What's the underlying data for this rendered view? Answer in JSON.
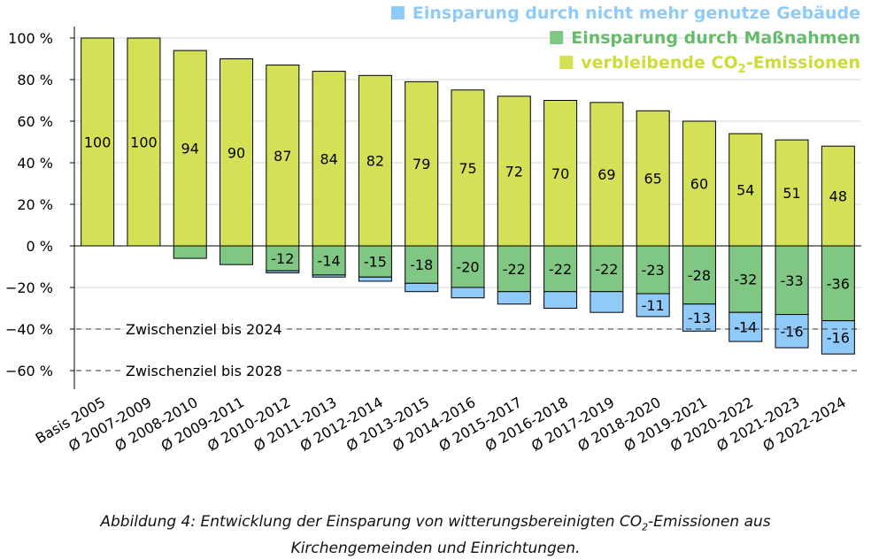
{
  "chart_data": {
    "type": "bar",
    "stacked": true,
    "categories": [
      "Basis 2005",
      "Ø 2007-2009",
      "Ø 2008-2010",
      "Ø 2009-2011",
      "Ø 2010-2012",
      "Ø 2011-2013",
      "Ø 2012-2014",
      "Ø 2013-2015",
      "Ø 2014-2016",
      "Ø 2015-2017",
      "Ø 2016-2018",
      "Ø 2017-2019",
      "Ø 2018-2020",
      "Ø 2019-2021",
      "Ø 2020-2022",
      "Ø 2021-2023",
      "Ø 2022-2024"
    ],
    "series": [
      {
        "name": "verbleibende CO2-Emissionen",
        "color": "#d4e157",
        "values": [
          100,
          100,
          94,
          90,
          87,
          84,
          82,
          79,
          75,
          72,
          70,
          69,
          65,
          60,
          54,
          51,
          48
        ]
      },
      {
        "name": "Einsparung durch Maßnahmen",
        "color": "#81c784",
        "values": [
          0,
          0,
          -6,
          -9,
          -12,
          -14,
          -15,
          -18,
          -20,
          -22,
          -22,
          -22,
          -23,
          -28,
          -32,
          -33,
          -36
        ]
      },
      {
        "name": "Einsparung durch nicht mehr genutze Gebäude",
        "color": "#90caf9",
        "values": [
          0,
          0,
          0,
          0,
          -1,
          -1,
          -2,
          -4,
          -5,
          -6,
          -8,
          -10,
          -11,
          -13,
          -14,
          -16,
          -16
        ]
      }
    ],
    "data_labels": {
      "remaining": [
        "100",
        "100",
        "94",
        "90",
        "87",
        "84",
        "82",
        "79",
        "75",
        "72",
        "70",
        "69",
        "65",
        "60",
        "54",
        "51",
        "48"
      ],
      "measures": [
        "",
        "",
        "",
        "",
        "-12",
        "-14",
        "-15",
        "-18",
        "-20",
        "-22",
        "-22",
        "-22",
        "-23",
        "-28",
        "-32",
        "-33",
        "-36"
      ],
      "buildings": [
        "",
        "",
        "",
        "",
        "",
        "",
        "",
        "",
        "",
        "",
        "",
        "",
        "-11",
        "-13",
        "-14",
        "-16",
        "-16"
      ]
    },
    "legend": {
      "placement": "top-right",
      "items": [
        {
          "prefix": "Einsparung durch nicht mehr genutze Gebäude",
          "color": "#90caf9",
          "text_color": "#90caf9"
        },
        {
          "prefix": "Einsparung durch Maßnahmen",
          "color": "#81c784",
          "text_color": "#66bb6a"
        },
        {
          "prefix": "verbleibende CO",
          "sub": "2",
          "suffix": "-Emissionen",
          "color": "#d4e157",
          "text_color": "#cddc39"
        }
      ]
    },
    "yticks": [
      "100 %",
      "80 %",
      "60 %",
      "40 %",
      "20 %",
      "0 %",
      "−20 %",
      "−40 %",
      "−60 %"
    ],
    "ytick_values": [
      100,
      80,
      60,
      40,
      20,
      0,
      -20,
      -40,
      -60
    ],
    "ylim": [
      -60,
      100
    ],
    "grid": true,
    "reference_lines": [
      {
        "label": "Zwischenziel bis 2024",
        "value": -40
      },
      {
        "label": "Zwischenziel bis 2028",
        "value": -60
      }
    ]
  },
  "caption": {
    "line1_prefix": "Abbildung 4: Entwicklung der Einsparung von witterungsbereinigten CO",
    "line1_sub": "2",
    "line1_suffix": "-Emissionen aus",
    "line2": "Kirchengemeinden und Einrichtungen."
  }
}
